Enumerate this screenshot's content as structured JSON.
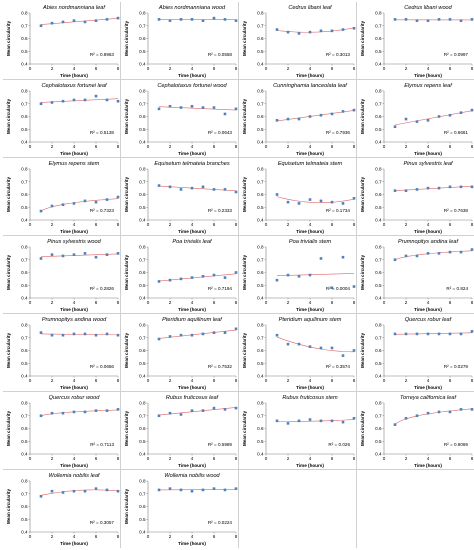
{
  "style": {
    "marker_color": "#4f81bd",
    "trend_color": "#e06666",
    "axis_color": "#808080",
    "divider_color": "#d0d0d0"
  },
  "shared": {
    "xlabel": "Time (hours)",
    "ylabel": "Mean circularity",
    "x_ticks": [
      "0",
      "2",
      "4",
      "6",
      "8"
    ],
    "y_ticks": [
      "0.4",
      "0.5",
      "0.6",
      "0.7",
      "0.8"
    ]
  },
  "chart_data": [
    {
      "type": "scatter",
      "title": "Abies nordmanniana leaf",
      "r2": "R² = 0.8963",
      "xlim": [
        0,
        8
      ],
      "ylim": [
        0.4,
        0.8
      ],
      "x": [
        1,
        2,
        3,
        4,
        5,
        6,
        7,
        8
      ],
      "values": [
        0.7,
        0.72,
        0.73,
        0.74,
        0.73,
        0.74,
        0.75,
        0.76
      ],
      "trend": "linear"
    },
    {
      "type": "scatter",
      "title": "Abies nordmanniana wood",
      "r2": "R² = 0.0558",
      "xlim": [
        0,
        8
      ],
      "ylim": [
        0.4,
        0.8
      ],
      "x": [
        1,
        2,
        3,
        4,
        5,
        6,
        7,
        8
      ],
      "values": [
        0.75,
        0.74,
        0.75,
        0.75,
        0.74,
        0.76,
        0.75,
        0.74
      ],
      "trend": "linear"
    },
    {
      "type": "scatter",
      "title": "Cedrus libani leaf",
      "r2": "R² = 0.3013",
      "xlim": [
        0,
        8
      ],
      "ylim": [
        0.4,
        0.8
      ],
      "x": [
        1,
        2,
        3,
        4,
        5,
        6,
        7,
        8
      ],
      "values": [
        0.67,
        0.65,
        0.64,
        0.65,
        0.66,
        0.66,
        0.67,
        0.68
      ],
      "trend": "poly"
    },
    {
      "type": "scatter",
      "title": "Cedrus libani wood",
      "r2": "R² = 0.0997",
      "xlim": [
        0,
        8
      ],
      "ylim": [
        0.4,
        0.8
      ],
      "x": [
        1,
        2,
        3,
        4,
        5,
        6,
        7,
        8
      ],
      "values": [
        0.75,
        0.75,
        0.74,
        0.74,
        0.75,
        0.75,
        0.74,
        0.75
      ],
      "trend": "linear"
    },
    {
      "type": "scatter",
      "title": "Cephalotaxus fortunei leaf",
      "r2": "R² = 0.5138",
      "xlim": [
        0,
        8
      ],
      "ylim": [
        0.4,
        0.8
      ],
      "x": [
        1,
        2,
        3,
        4,
        5,
        6,
        7,
        8
      ],
      "values": [
        0.7,
        0.71,
        0.72,
        0.73,
        0.73,
        0.76,
        0.73,
        0.72
      ],
      "trend": "linear"
    },
    {
      "type": "scatter",
      "title": "Cephalotaxus fortunei wood",
      "r2": "R² = 0.0643",
      "xlim": [
        0,
        8
      ],
      "ylim": [
        0.4,
        0.8
      ],
      "x": [
        1,
        2,
        3,
        4,
        5,
        6,
        7,
        8
      ],
      "values": [
        0.66,
        0.68,
        0.67,
        0.68,
        0.67,
        0.67,
        0.62,
        0.66
      ],
      "trend": "linear"
    },
    {
      "type": "scatter",
      "title": "Cunninghamia lanceolata leaf",
      "r2": "R² = 0.7936",
      "xlim": [
        0,
        8
      ],
      "ylim": [
        0.4,
        0.8
      ],
      "x": [
        1,
        2,
        3,
        4,
        5,
        6,
        7,
        8
      ],
      "values": [
        0.57,
        0.58,
        0.58,
        0.6,
        0.61,
        0.62,
        0.64,
        0.65
      ],
      "trend": "linear"
    },
    {
      "type": "scatter",
      "title": "Elymus repens leaf",
      "r2": "R² = 0.6661",
      "xlim": [
        0,
        8
      ],
      "ylim": [
        0.4,
        0.8
      ],
      "x": [
        1,
        2,
        3,
        4,
        5,
        6,
        7,
        8
      ],
      "values": [
        0.52,
        0.58,
        0.56,
        0.57,
        0.6,
        0.61,
        0.63,
        0.65
      ],
      "trend": "linear"
    },
    {
      "type": "scatter",
      "title": "Elymus repens stem",
      "r2": "R² = 0.7323",
      "xlim": [
        0,
        8
      ],
      "ylim": [
        0.4,
        0.8
      ],
      "x": [
        1,
        2,
        3,
        4,
        5,
        6,
        7,
        8
      ],
      "values": [
        0.47,
        0.51,
        0.52,
        0.53,
        0.55,
        0.54,
        0.56,
        0.58
      ],
      "trend": "log"
    },
    {
      "type": "scatter",
      "title": "Equisetum telmateia branches",
      "r2": "R² = 0.2333",
      "xlim": [
        0,
        8
      ],
      "ylim": [
        0.4,
        0.8
      ],
      "x": [
        1,
        2,
        3,
        4,
        5,
        6,
        7,
        8
      ],
      "values": [
        0.67,
        0.66,
        0.64,
        0.65,
        0.66,
        0.64,
        0.64,
        0.62
      ],
      "trend": "linear"
    },
    {
      "type": "scatter",
      "title": "Equisetum telmateia stem",
      "r2": "R² = 0.1734",
      "xlim": [
        0,
        8
      ],
      "ylim": [
        0.4,
        0.8
      ],
      "x": [
        1,
        2,
        3,
        4,
        5,
        6,
        7,
        8
      ],
      "values": [
        0.6,
        0.54,
        0.53,
        0.56,
        0.55,
        0.54,
        0.53,
        0.57
      ],
      "trend": "poly"
    },
    {
      "type": "scatter",
      "title": "Pinus sylvestris leaf",
      "r2": "R² = 0.7638",
      "xlim": [
        0,
        8
      ],
      "ylim": [
        0.4,
        0.8
      ],
      "x": [
        1,
        2,
        3,
        4,
        5,
        6,
        7,
        8
      ],
      "values": [
        0.63,
        0.63,
        0.64,
        0.65,
        0.65,
        0.66,
        0.66,
        0.66
      ],
      "trend": "linear"
    },
    {
      "type": "scatter",
      "title": "Pinus sylvestris wood",
      "r2": "R² = 0.2826",
      "xlim": [
        0,
        8
      ],
      "ylim": [
        0.4,
        0.8
      ],
      "x": [
        1,
        2,
        3,
        4,
        5,
        6,
        7,
        8
      ],
      "values": [
        0.71,
        0.74,
        0.73,
        0.74,
        0.75,
        0.72,
        0.74,
        0.75
      ],
      "trend": "linear"
    },
    {
      "type": "scatter",
      "title": "Poa trivialis leaf",
      "r2": "R² = 0.7194",
      "xlim": [
        0,
        8
      ],
      "ylim": [
        0.4,
        0.8
      ],
      "x": [
        1,
        2,
        3,
        4,
        5,
        6,
        7,
        8
      ],
      "values": [
        0.53,
        0.54,
        0.55,
        0.56,
        0.57,
        0.58,
        0.56,
        0.6
      ],
      "trend": "linear"
    },
    {
      "type": "scatter",
      "title": "Poa trivialis stem",
      "r2": "R² = 0.0004",
      "xlim": [
        0,
        8
      ],
      "ylim": [
        0.4,
        0.8
      ],
      "x": [
        1,
        2,
        3,
        4,
        5,
        6,
        7,
        8
      ],
      "values": [
        0.54,
        0.58,
        0.57,
        0.58,
        0.71,
        0.48,
        0.72,
        0.49
      ],
      "trend": "linear"
    },
    {
      "type": "scatter",
      "title": "Prumnopitys andina leaf",
      "r2": "R² = 0.824",
      "xlim": [
        0,
        8
      ],
      "ylim": [
        0.4,
        0.8
      ],
      "x": [
        1,
        2,
        3,
        4,
        5,
        6,
        7,
        8
      ],
      "values": [
        0.7,
        0.73,
        0.73,
        0.75,
        0.75,
        0.76,
        0.76,
        0.78
      ],
      "trend": "log"
    },
    {
      "type": "scatter",
      "title": "Prumnopitys andina wood",
      "r2": "R² = 0.0656",
      "xlim": [
        0,
        8
      ],
      "ylim": [
        0.4,
        0.8
      ],
      "x": [
        1,
        2,
        3,
        4,
        5,
        6,
        7,
        8
      ],
      "values": [
        0.74,
        0.72,
        0.72,
        0.73,
        0.73,
        0.72,
        0.73,
        0.72
      ],
      "trend": "linear"
    },
    {
      "type": "scatter",
      "title": "Pteridium aquilinum leaf",
      "r2": "R² = 0.7532",
      "xlim": [
        0,
        8
      ],
      "ylim": [
        0.4,
        0.8
      ],
      "x": [
        1,
        2,
        3,
        4,
        5,
        6,
        7,
        8
      ],
      "values": [
        0.69,
        0.71,
        0.72,
        0.72,
        0.73,
        0.74,
        0.74,
        0.77
      ],
      "trend": "linear"
    },
    {
      "type": "scatter",
      "title": "Pteridium aquilinum stem",
      "r2": "R² = 0.3574",
      "xlim": [
        0,
        8
      ],
      "ylim": [
        0.4,
        0.8
      ],
      "x": [
        1,
        2,
        3,
        4,
        5,
        6,
        7,
        8
      ],
      "values": [
        0.72,
        0.65,
        0.65,
        0.63,
        0.62,
        0.62,
        0.56,
        0.6
      ],
      "trend": "poly"
    },
    {
      "type": "scatter",
      "title": "Quercus robur leaf",
      "r2": "R² = 0.0279",
      "xlim": [
        0,
        8
      ],
      "ylim": [
        0.4,
        0.8
      ],
      "x": [
        1,
        2,
        3,
        4,
        5,
        6,
        7,
        8
      ],
      "values": [
        0.73,
        0.73,
        0.73,
        0.73,
        0.73,
        0.73,
        0.73,
        0.75
      ],
      "trend": "linear"
    },
    {
      "type": "scatter",
      "title": "Quercus robur wood",
      "r2": "R² = 0.7113",
      "xlim": [
        0,
        8
      ],
      "ylim": [
        0.4,
        0.8
      ],
      "x": [
        1,
        2,
        3,
        4,
        5,
        6,
        7,
        8
      ],
      "values": [
        0.7,
        0.72,
        0.72,
        0.73,
        0.73,
        0.74,
        0.74,
        0.75
      ],
      "trend": "log"
    },
    {
      "type": "scatter",
      "title": "Rubus fruticosus leaf",
      "r2": "R² = 0.5989",
      "xlim": [
        0,
        8
      ],
      "ylim": [
        0.4,
        0.8
      ],
      "x": [
        1,
        2,
        3,
        4,
        5,
        6,
        7,
        8
      ],
      "values": [
        0.7,
        0.72,
        0.71,
        0.74,
        0.74,
        0.76,
        0.75,
        0.76
      ],
      "trend": "linear"
    },
    {
      "type": "scatter",
      "title": "Rubus fruticosus stem",
      "r2": "R² = 0.026",
      "xlim": [
        0,
        8
      ],
      "ylim": [
        0.4,
        0.8
      ],
      "x": [
        1,
        2,
        3,
        4,
        5,
        6,
        7,
        8
      ],
      "values": [
        0.66,
        0.64,
        0.66,
        0.67,
        0.66,
        0.66,
        0.65,
        0.68
      ],
      "trend": "poly"
    },
    {
      "type": "scatter",
      "title": "Torreya californica leaf",
      "r2": "R² = 0.9069",
      "xlim": [
        0,
        8
      ],
      "ylim": [
        0.4,
        0.8
      ],
      "x": [
        1,
        2,
        3,
        4,
        5,
        6,
        7,
        8
      ],
      "values": [
        0.63,
        0.68,
        0.7,
        0.72,
        0.73,
        0.73,
        0.75,
        0.75
      ],
      "trend": "log"
    },
    {
      "type": "scatter",
      "title": "Wollemia nobilis leaf",
      "r2": "R² = 0.3057",
      "xlim": [
        0,
        8
      ],
      "ylim": [
        0.4,
        0.8
      ],
      "x": [
        1,
        2,
        3,
        4,
        5,
        6,
        7,
        8
      ],
      "values": [
        0.68,
        0.72,
        0.71,
        0.72,
        0.72,
        0.74,
        0.73,
        0.72
      ],
      "trend": "poly"
    },
    {
      "type": "scatter",
      "title": "Wollemia nobilis wood",
      "r2": "R² = 0.0224",
      "xlim": [
        0,
        8
      ],
      "ylim": [
        0.4,
        0.8
      ],
      "x": [
        1,
        2,
        3,
        4,
        5,
        6,
        7,
        8
      ],
      "values": [
        0.73,
        0.74,
        0.73,
        0.72,
        0.73,
        0.74,
        0.73,
        0.74
      ],
      "trend": "linear"
    }
  ]
}
